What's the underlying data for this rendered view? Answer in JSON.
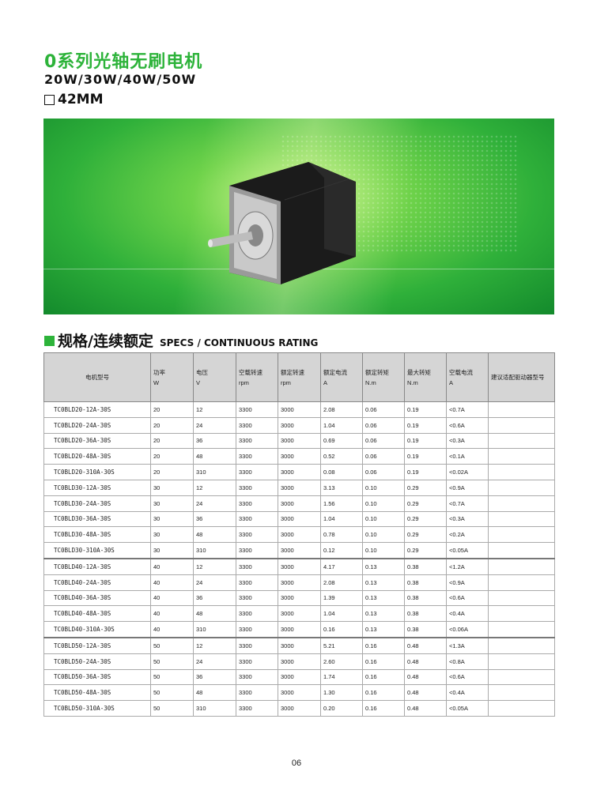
{
  "header": {
    "title": "0系列光轴无刷电机",
    "power_range": "20W/30W/40W/50W",
    "frame_size": "42MM"
  },
  "banner": {
    "image": "brushless-motor-on-green-world-map-background"
  },
  "section": {
    "title_cn": "规格/连续额定",
    "title_en": "SPECS / CONTINUOUS RATING",
    "accent": "#2db33a"
  },
  "table": {
    "columns": [
      {
        "label": "电机型号",
        "unit": ""
      },
      {
        "label": "功率",
        "unit": "W"
      },
      {
        "label": "电压",
        "unit": "V"
      },
      {
        "label": "空载转速",
        "unit": "rpm"
      },
      {
        "label": "额定转速",
        "unit": "rpm"
      },
      {
        "label": "额定电流",
        "unit": "A"
      },
      {
        "label": "额定转矩",
        "unit": "N.m"
      },
      {
        "label": "最大转矩",
        "unit": "N.m"
      },
      {
        "label": "空载电流",
        "unit": "A"
      },
      {
        "label": "建议适配驱动器型号",
        "unit": ""
      }
    ],
    "rows": [
      [
        "TC0BLD20-12A-30S",
        "20",
        "12",
        "3300",
        "3000",
        "2.08",
        "0.06",
        "0.19",
        "<0.7A",
        ""
      ],
      [
        "TC0BLD20-24A-30S",
        "20",
        "24",
        "3300",
        "3000",
        "1.04",
        "0.06",
        "0.19",
        "<0.6A",
        ""
      ],
      [
        "TC0BLD20-36A-30S",
        "20",
        "36",
        "3300",
        "3000",
        "0.69",
        "0.06",
        "0.19",
        "<0.3A",
        ""
      ],
      [
        "TC0BLD20-48A-30S",
        "20",
        "48",
        "3300",
        "3000",
        "0.52",
        "0.06",
        "0.19",
        "<0.1A",
        ""
      ],
      [
        "TC0BLD20-310A-30S",
        "20",
        "310",
        "3300",
        "3000",
        "0.08",
        "0.06",
        "0.19",
        "<0.02A",
        ""
      ],
      [
        "TC0BLD30-12A-30S",
        "30",
        "12",
        "3300",
        "3000",
        "3.13",
        "0.10",
        "0.29",
        "<0.9A",
        ""
      ],
      [
        "TC0BLD30-24A-30S",
        "30",
        "24",
        "3300",
        "3000",
        "1.56",
        "0.10",
        "0.29",
        "<0.7A",
        ""
      ],
      [
        "TC0BLD30-36A-30S",
        "30",
        "36",
        "3300",
        "3000",
        "1.04",
        "0.10",
        "0.29",
        "<0.3A",
        ""
      ],
      [
        "TC0BLD30-48A-30S",
        "30",
        "48",
        "3300",
        "3000",
        "0.78",
        "0.10",
        "0.29",
        "<0.2A",
        ""
      ],
      [
        "TC0BLD30-310A-30S",
        "30",
        "310",
        "3300",
        "3000",
        "0.12",
        "0.10",
        "0.29",
        "<0.05A",
        ""
      ],
      [
        "TC0BLD40-12A-30S",
        "40",
        "12",
        "3300",
        "3000",
        "4.17",
        "0.13",
        "0.38",
        "<1.2A",
        ""
      ],
      [
        "TC0BLD40-24A-30S",
        "40",
        "24",
        "3300",
        "3000",
        "2.08",
        "0.13",
        "0.38",
        "<0.9A",
        ""
      ],
      [
        "TC0BLD40-36A-30S",
        "40",
        "36",
        "3300",
        "3000",
        "1.39",
        "0.13",
        "0.38",
        "<0.6A",
        ""
      ],
      [
        "TC0BLD40-48A-30S",
        "40",
        "48",
        "3300",
        "3000",
        "1.04",
        "0.13",
        "0.38",
        "<0.4A",
        ""
      ],
      [
        "TC0BLD40-310A-30S",
        "40",
        "310",
        "3300",
        "3000",
        "0.16",
        "0.13",
        "0.38",
        "<0.06A",
        ""
      ],
      [
        "TC0BLD50-12A-30S",
        "50",
        "12",
        "3300",
        "3000",
        "5.21",
        "0.16",
        "0.48",
        "<1.3A",
        ""
      ],
      [
        "TC0BLD50-24A-30S",
        "50",
        "24",
        "3300",
        "3000",
        "2.60",
        "0.16",
        "0.48",
        "<0.8A",
        ""
      ],
      [
        "TC0BLD50-36A-30S",
        "50",
        "36",
        "3300",
        "3000",
        "1.74",
        "0.16",
        "0.48",
        "<0.6A",
        ""
      ],
      [
        "TC0BLD50-48A-30S",
        "50",
        "48",
        "3300",
        "3000",
        "1.30",
        "0.16",
        "0.48",
        "<0.4A",
        ""
      ],
      [
        "TC0BLD50-310A-30S",
        "50",
        "310",
        "3300",
        "3000",
        "0.20",
        "0.16",
        "0.48",
        "<0.05A",
        ""
      ]
    ]
  },
  "footer": {
    "page_number": "06"
  }
}
